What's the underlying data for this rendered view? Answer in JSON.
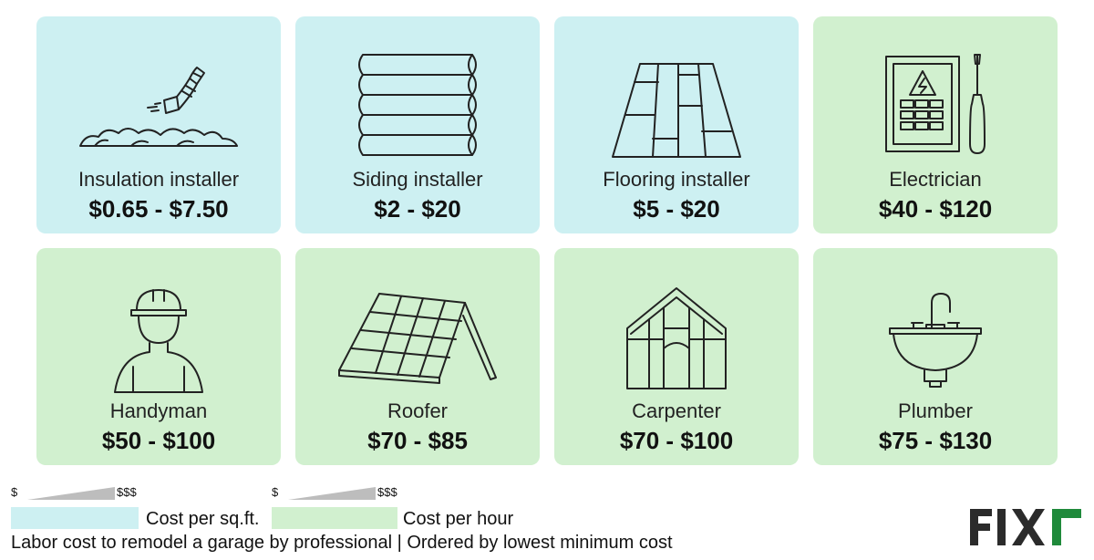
{
  "cards": [
    {
      "title": "Insulation installer",
      "price": "$0.65 - $7.50",
      "rate": "sqft",
      "icon": "insulation-icon"
    },
    {
      "title": "Siding installer",
      "price": "$2 - $20",
      "rate": "sqft",
      "icon": "siding-icon"
    },
    {
      "title": "Flooring installer",
      "price": "$5 - $20",
      "rate": "sqft",
      "icon": "flooring-icon"
    },
    {
      "title": "Electrician",
      "price": "$40 - $120",
      "rate": "hour",
      "icon": "electric-panel-icon"
    },
    {
      "title": "Handyman",
      "price": "$50 - $100",
      "rate": "hour",
      "icon": "worker-hardhat-icon"
    },
    {
      "title": "Roofer",
      "price": "$70 - $85",
      "rate": "hour",
      "icon": "roof-icon"
    },
    {
      "title": "Carpenter",
      "price": "$70 - $100",
      "rate": "hour",
      "icon": "house-frame-icon"
    },
    {
      "title": "Plumber",
      "price": "$75 - $130",
      "rate": "hour",
      "icon": "sink-icon"
    }
  ],
  "legend": {
    "sqft": {
      "low": "$",
      "high": "$$$",
      "label": "Cost per sq.ft.",
      "color": "#cdf0f2"
    },
    "hour": {
      "low": "$",
      "high": "$$$",
      "label": "Cost per hour",
      "color": "#d1f0cf"
    }
  },
  "caption": "Labor cost to remodel a garage by professional | Ordered by lowest minimum cost",
  "brand": {
    "name": "FIXR",
    "color": "#1f8a3b"
  }
}
